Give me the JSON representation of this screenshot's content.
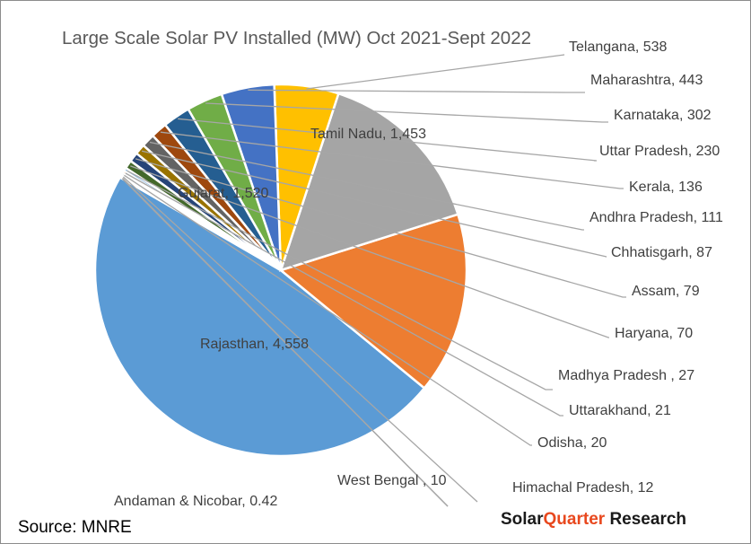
{
  "chart_data": {
    "type": "pie",
    "title": "Large Scale Solar PV Installed (MW) Oct 2021-Sept 2022",
    "unit": "MW",
    "slices": [
      {
        "label": "Rajasthan",
        "value": 4558,
        "display": "Rajasthan, 4,558",
        "color": "#5B9BD5"
      },
      {
        "label": "Gujarat",
        "value": 1520,
        "display": "Gujarat, 1,520",
        "color": "#ED7D31"
      },
      {
        "label": "Tamil Nadu",
        "value": 1453,
        "display": "Tamil Nadu, 1,453",
        "color": "#A5A5A5"
      },
      {
        "label": "Telangana",
        "value": 538,
        "display": "Telangana, 538",
        "color": "#FFC000"
      },
      {
        "label": "Maharashtra",
        "value": 443,
        "display": "Maharashtra, 443",
        "color": "#4472C4"
      },
      {
        "label": "Karnataka",
        "value": 302,
        "display": "Karnataka, 302",
        "color": "#70AD47"
      },
      {
        "label": "Uttar Pradesh",
        "value": 230,
        "display": "Uttar Pradesh, 230",
        "color": "#255E91"
      },
      {
        "label": "Kerala",
        "value": 136,
        "display": "Kerala, 136",
        "color": "#9E480E"
      },
      {
        "label": "Andhra Pradesh",
        "value": 111,
        "display": "Andhra Pradesh, 111",
        "color": "#636363"
      },
      {
        "label": "Chhatisgarh",
        "value": 87,
        "display": "Chhatisgarh, 87",
        "color": "#997300"
      },
      {
        "label": "Assam",
        "value": 79,
        "display": "Assam, 79",
        "color": "#264478"
      },
      {
        "label": "Haryana",
        "value": 70,
        "display": "Haryana, 70",
        "color": "#43682B"
      },
      {
        "label": "Madhya Pradesh",
        "value": 27,
        "display": "Madhya Pradesh , 27",
        "color": "#7CAFDD"
      },
      {
        "label": "Uttarakhand",
        "value": 21,
        "display": "Uttarakhand, 21",
        "color": "#F1975A"
      },
      {
        "label": "Odisha",
        "value": 20,
        "display": "Odisha, 20",
        "color": "#B7B7B7"
      },
      {
        "label": "Himachal Pradesh",
        "value": 12,
        "display": "Himachal Pradesh, 12",
        "color": "#FFCD33"
      },
      {
        "label": "West Bengal",
        "value": 10,
        "display": "West Bengal , 10",
        "color": "#698ED0"
      },
      {
        "label": "Andaman & Nicobar",
        "value": 0.42,
        "display": "Andaman & Nicobar, 0.42",
        "color": "#8CC168"
      }
    ]
  },
  "footer": {
    "source": "Source: MNRE",
    "brand_part1": "Solar",
    "brand_part2": "Quarter",
    "brand_part3": " Research",
    "brand_color_dark": "#1a1a1a",
    "brand_color_accent": "#E8481E"
  }
}
